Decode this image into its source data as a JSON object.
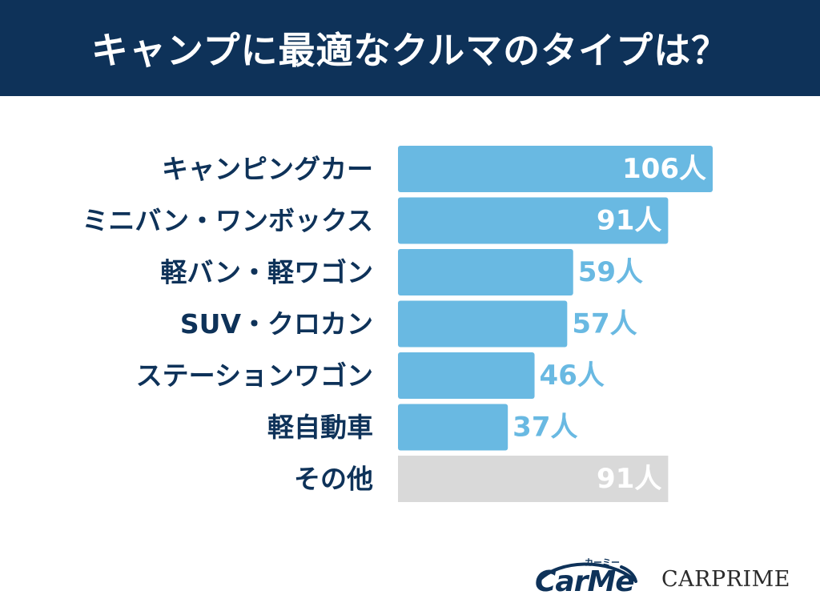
{
  "header": {
    "title": "キャンプに最適なクルマのタイプは？"
  },
  "colors": {
    "header_bg": "#0e3259",
    "bar": "#69b9e2",
    "bar_other": "#d9d9d9",
    "label_text": "#0e3259",
    "value_outside": "#69b9e2",
    "value_inside": "#ffffff"
  },
  "chart_data": {
    "type": "bar",
    "orientation": "horizontal",
    "categories": [
      "キャンピングカー",
      "ミニバン・ワンボックス",
      "軽バン・軽ワゴン",
      "SUV・クロカン",
      "ステーションワゴン",
      "軽自動車",
      "その他"
    ],
    "values": [
      106,
      91,
      59,
      57,
      46,
      37,
      91
    ],
    "value_labels": [
      "106人",
      "91人",
      "59人",
      "57人",
      "46人",
      "37人",
      "91人"
    ],
    "highlight_gray": [
      "その他"
    ],
    "xlim": [
      0,
      106
    ],
    "grid": false,
    "legend": "none"
  },
  "logos": {
    "carme": {
      "text": "CarMe",
      "kana": "カーミー"
    },
    "carprime": {
      "text": "CARPRIME"
    }
  }
}
